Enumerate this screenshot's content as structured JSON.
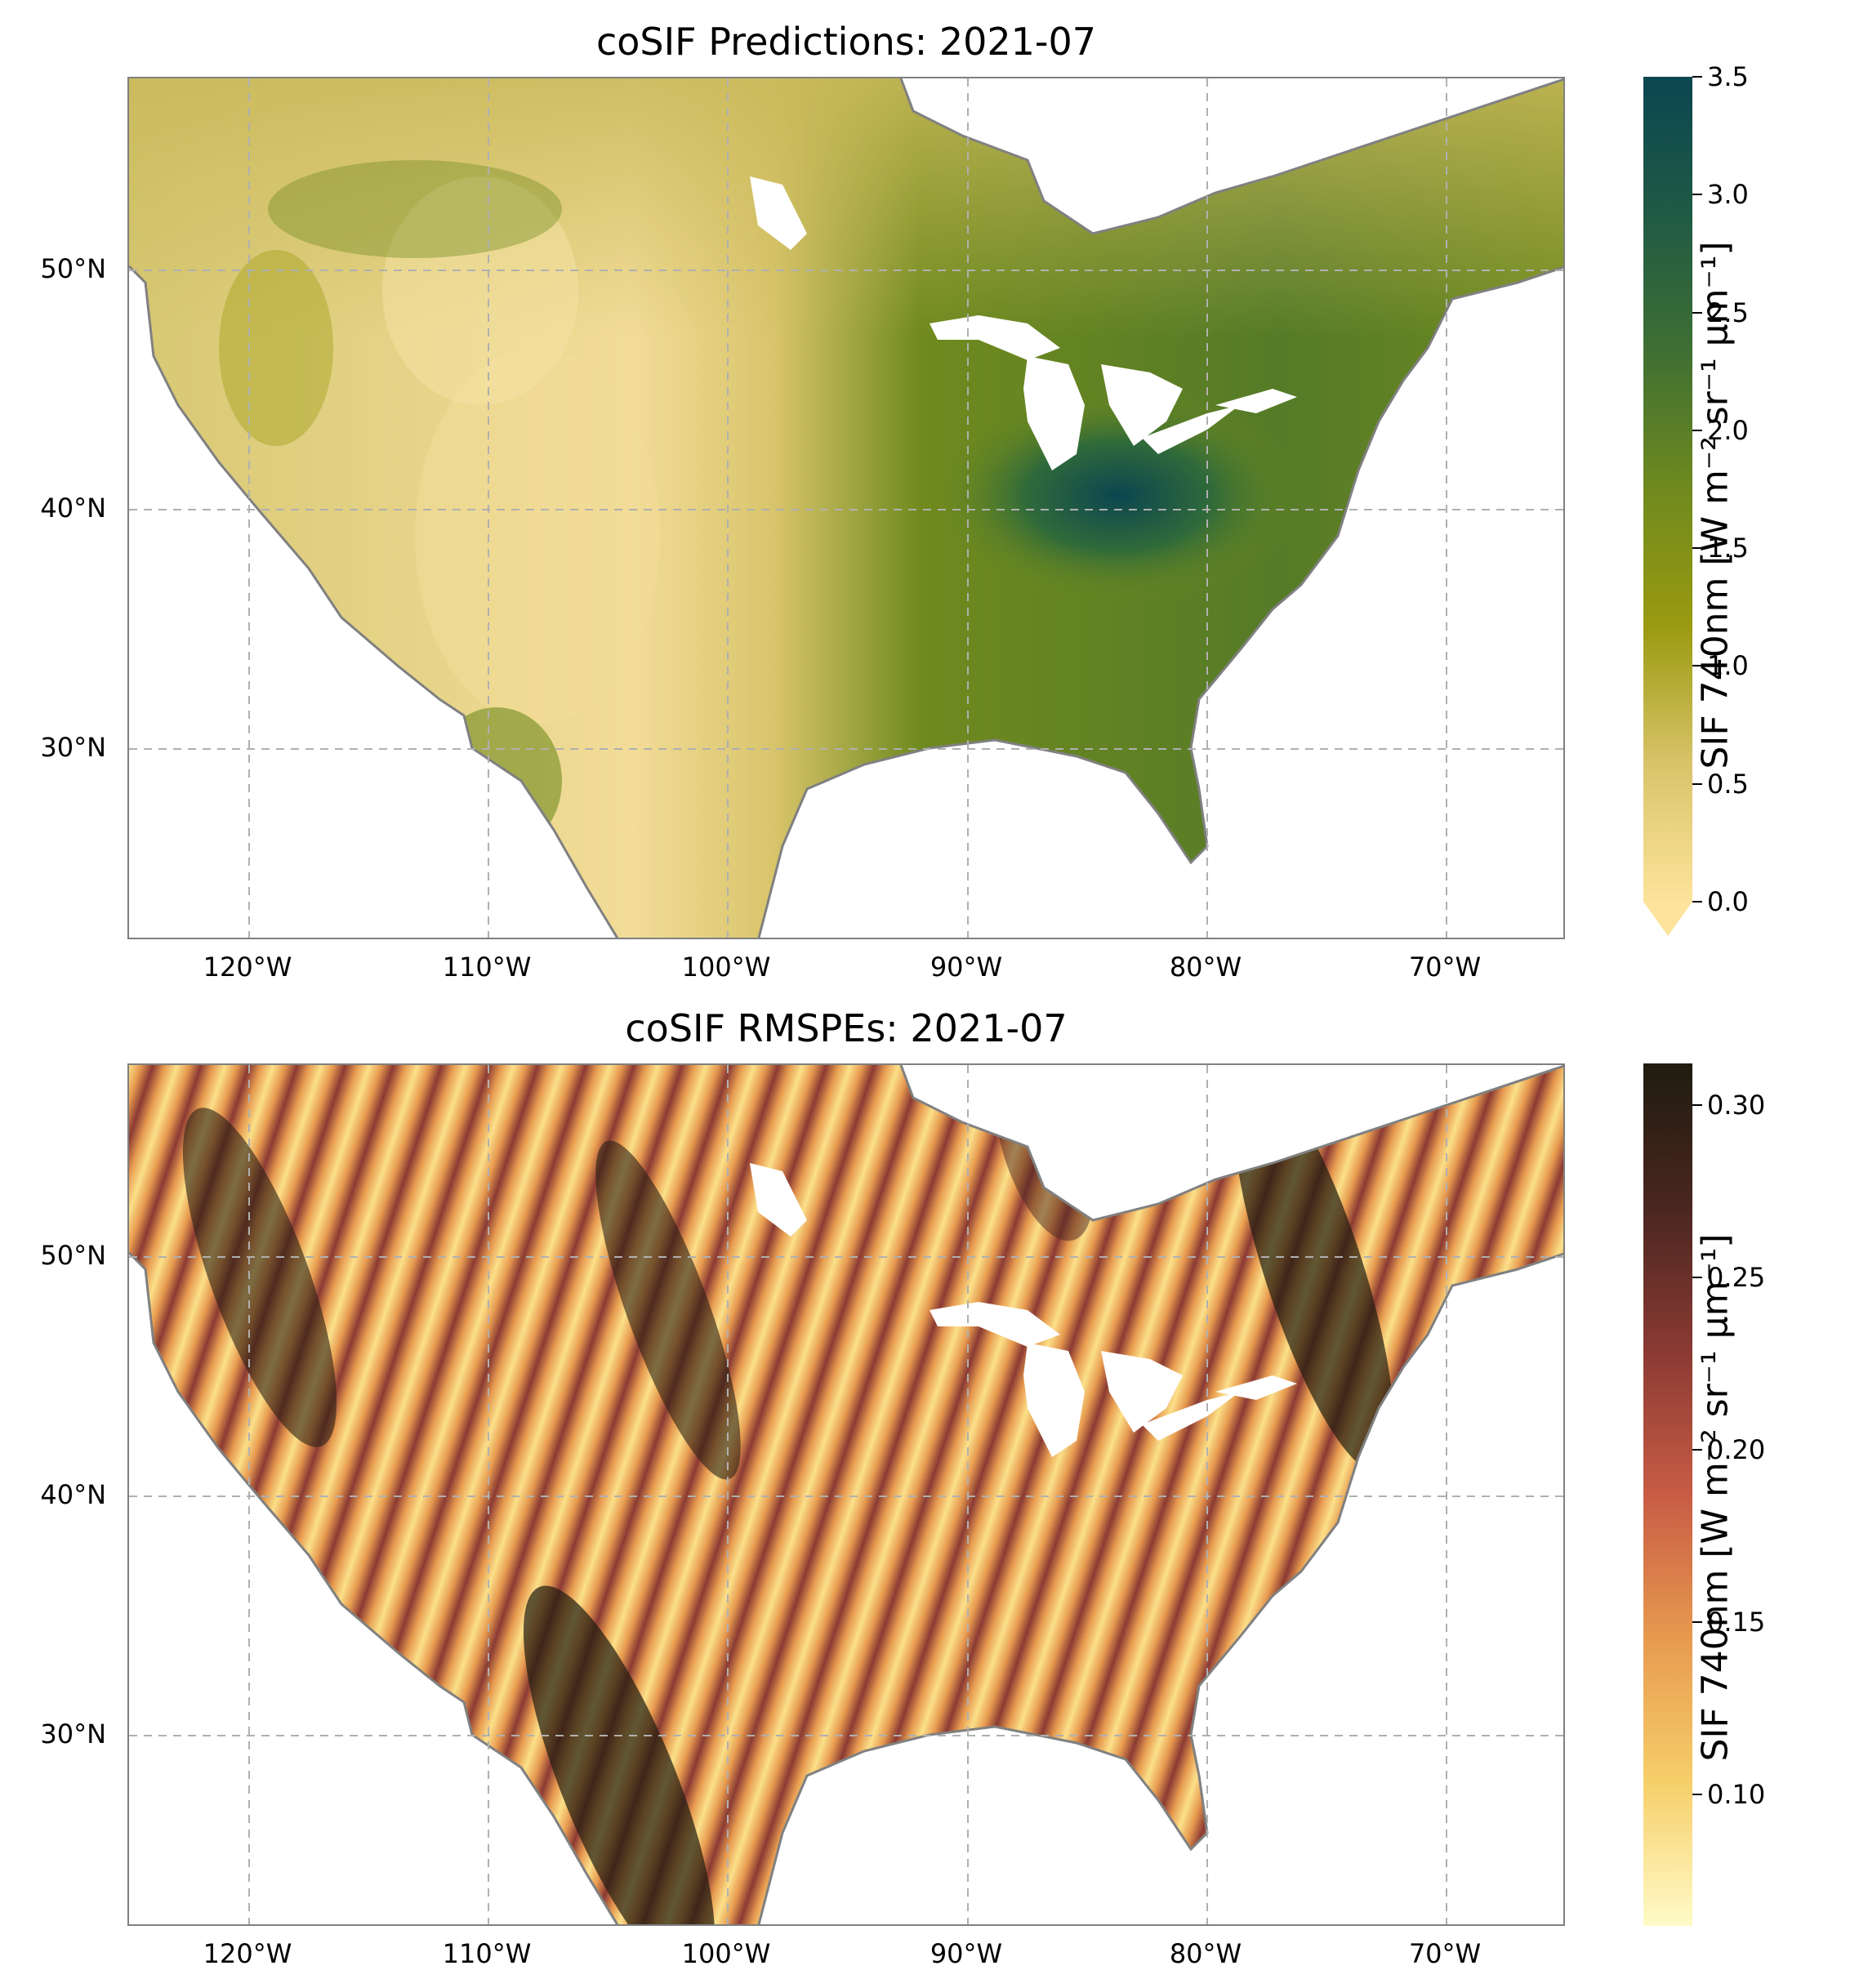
{
  "panels": [
    {
      "title": "coSIF Predictions: 2021-07",
      "colorbar": {
        "label": "SIF 740nm [W m⁻² sr⁻¹ μm⁻¹]",
        "ticks": [
          "0.0",
          "0.5",
          "1.0",
          "1.5",
          "2.0",
          "2.5",
          "3.0",
          "3.5"
        ],
        "range": [
          0.0,
          3.5
        ],
        "extend": "min",
        "colors": [
          "#fde39b",
          "#d9c46a",
          "#9a9a10",
          "#6f8a1e",
          "#3f6f33",
          "#1f5a45",
          "#0c4550"
        ]
      }
    },
    {
      "title": "coSIF RMSPEs: 2021-07",
      "colorbar": {
        "label": "SIF 740nm [W m⁻² sr⁻¹ μm⁻¹]",
        "ticks": [
          "0.10",
          "0.15",
          "0.20",
          "0.25",
          "0.30"
        ],
        "range": [
          0.062,
          0.312
        ],
        "extend": "neither",
        "colors": [
          "#fffbc8",
          "#f6cf6a",
          "#e79a4f",
          "#c85c45",
          "#8a3a33",
          "#4a2620",
          "#1f1c10"
        ]
      }
    }
  ],
  "map": {
    "lon_ticks": [
      "120°W",
      "110°W",
      "100°W",
      "90°W",
      "80°W",
      "70°W"
    ],
    "lat_ticks": [
      "50°N",
      "40°N",
      "30°N"
    ],
    "lon_range": [
      -125,
      -65
    ],
    "lat_range": [
      22,
      58
    ],
    "gridlines": true,
    "coastline_color": "#808080"
  }
}
